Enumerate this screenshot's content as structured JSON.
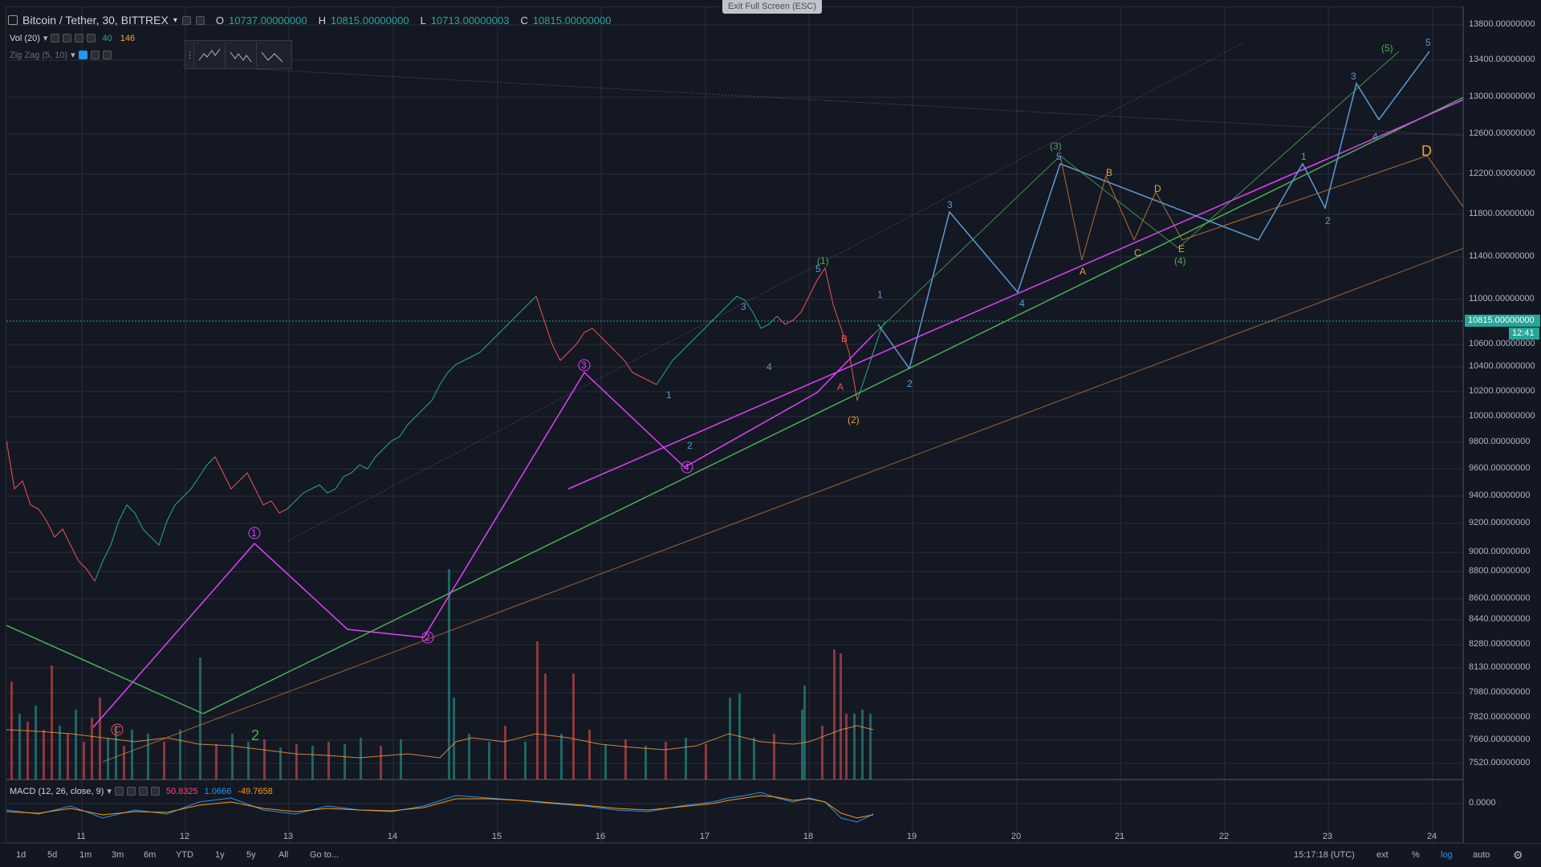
{
  "exit_fullscreen": "Exit Full Screen (ESC)",
  "header": {
    "symbol": "Bitcoin / Tether, 30, BITTREX",
    "ohlc": [
      {
        "k": "O",
        "v": "10737.00000000"
      },
      {
        "k": "H",
        "v": "10815.00000000"
      },
      {
        "k": "L",
        "v": "10713.00000003"
      },
      {
        "k": "C",
        "v": "10815.00000000"
      }
    ]
  },
  "indicators": {
    "vol": {
      "label": "Vol (20)",
      "v1": "40",
      "v2": "146"
    },
    "zigzag": {
      "label": "Zig Zag (5, 10)"
    }
  },
  "toolbox": {
    "tools": [
      "1 5 wave",
      "A E wave",
      "A C wave"
    ]
  },
  "macd": {
    "label": "MACD (12, 26, close, 9)",
    "v1": "50.8325",
    "v2": "1.0666",
    "v3": "-49.7658"
  },
  "price_axis": {
    "ticks": [
      "13800.00000000",
      "13400.00000000",
      "13000.00000000",
      "12600.00000000",
      "12200.00000000",
      "11800.00000000",
      "11400.00000000",
      "11000.00000000",
      "10600.00000000",
      "10400.00000000",
      "10200.00000000",
      "10000.00000000",
      "9800.00000000",
      "9600.00000000",
      "9400.00000000",
      "9200.00000000",
      "9000.00000000",
      "8800.00000000",
      "8600.00000000",
      "8440.00000000",
      "8280.00000000",
      "8130.00000000",
      "7980.00000000",
      "7820.00000000",
      "7660.00000000",
      "7520.00000000"
    ],
    "current_price": "10815.00000000",
    "countdown": "12:41",
    "macd_zero": "0.0000"
  },
  "time_axis": {
    "labels": [
      "11",
      "12",
      "13",
      "14",
      "15",
      "16",
      "17",
      "18",
      "19",
      "20",
      "21",
      "22",
      "23",
      "24"
    ]
  },
  "bottom_bar": {
    "ranges": [
      "1d",
      "5d",
      "1m",
      "3m",
      "6m",
      "YTD",
      "1y",
      "5y",
      "All"
    ],
    "goto": "Go to...",
    "clock": "15:17:18 (UTC)",
    "ext": "ext",
    "percent": "%",
    "log": "log",
    "auto": "auto"
  },
  "colors": {
    "background": "#131722",
    "up": "#26a69a",
    "down": "#ef5350",
    "magenta": "#e040fb",
    "green": "#4caf50",
    "blue": "#5b9bd5",
    "orange": "#e6a23c",
    "price_line": "#26a69a"
  }
}
